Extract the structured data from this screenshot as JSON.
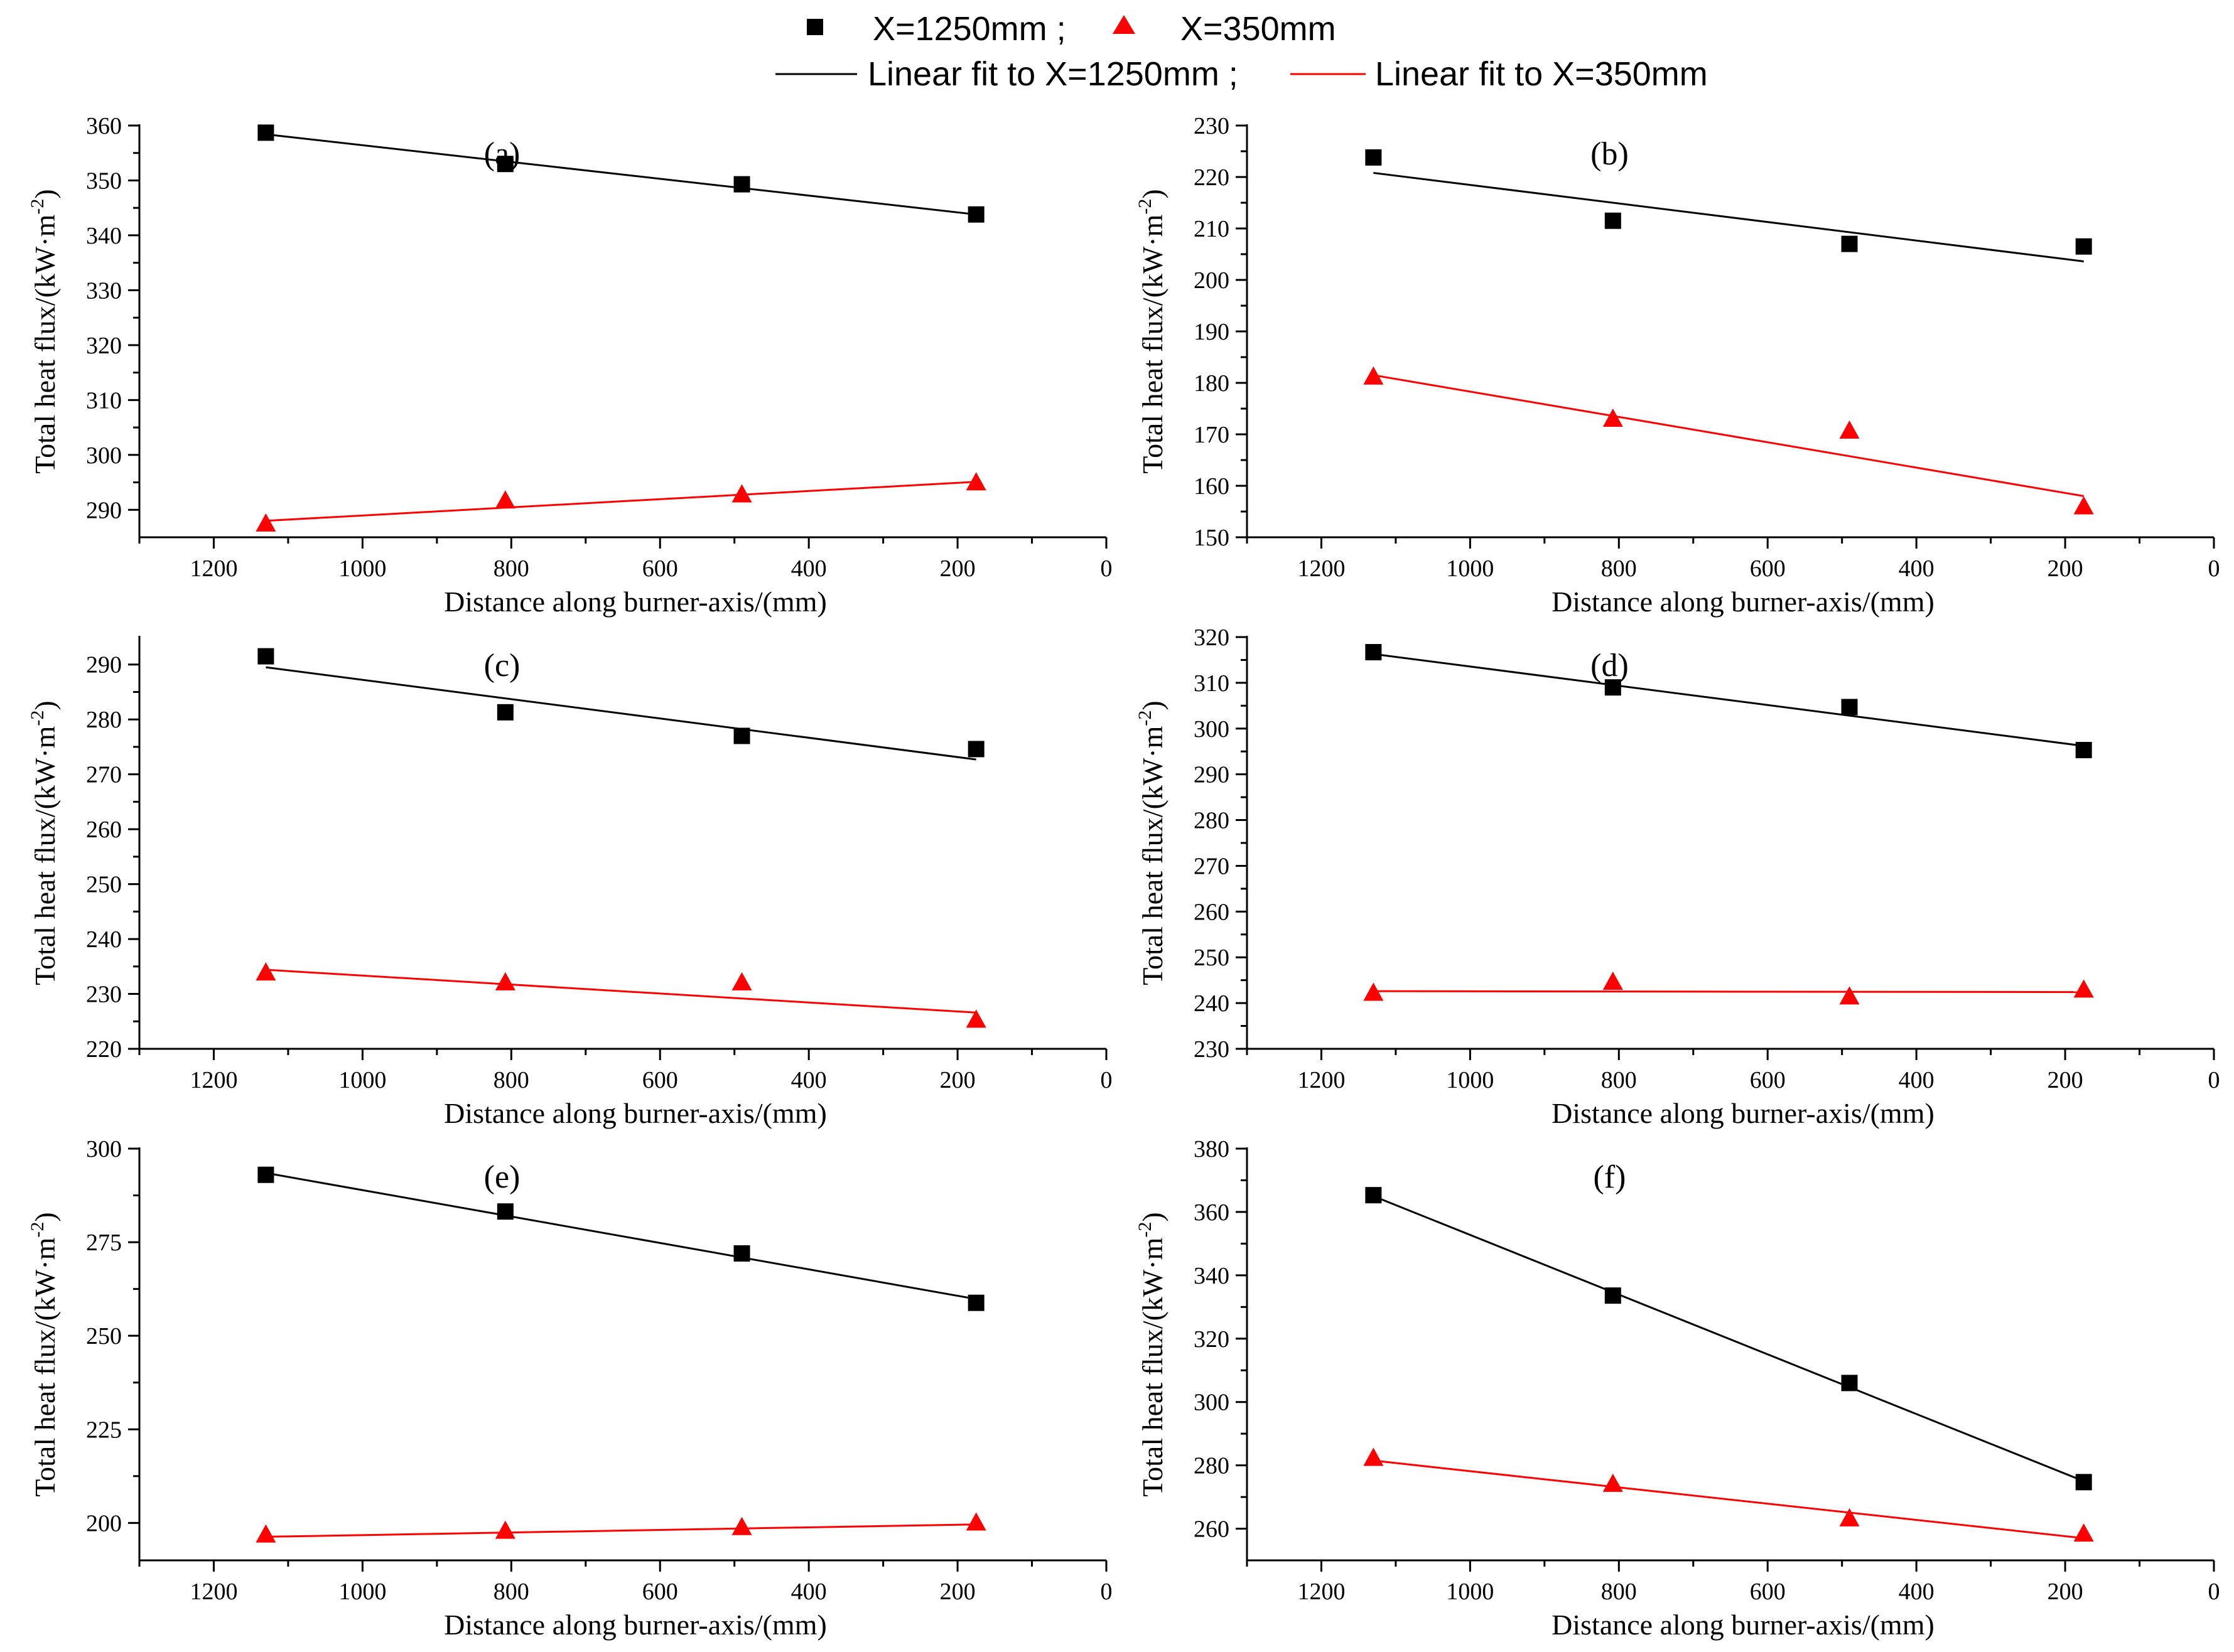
{
  "legend": {
    "series1_label": "X=1250mm ;",
    "series2_label": "X=350mm",
    "fit1_label": "Linear fit to X=1250mm ;",
    "fit2_label": "Linear fit to X=350mm"
  },
  "colors": {
    "series1": "#000000",
    "series2": "#ff0000"
  },
  "chart_data": [
    {
      "type": "scatter",
      "panel_label": "(a)",
      "xlabel": "Distance along burner-axis/(mm)",
      "ylabel": "Total heat flux/(kW·m",
      "ylabel_sup": "-2",
      "ylabel_close": ")",
      "xlim": [
        1300,
        0
      ],
      "xticks": [
        1200,
        1000,
        800,
        600,
        400,
        200,
        0
      ],
      "ylim": [
        285,
        360
      ],
      "yticks": [
        290,
        300,
        310,
        320,
        330,
        340,
        350,
        360
      ],
      "x": [
        1130,
        808,
        490,
        175
      ],
      "series": [
        {
          "name": "X=1250mm",
          "values": [
            358.7,
            353.0,
            349.3,
            343.8
          ],
          "fit": [
            358.4,
            343.8
          ]
        },
        {
          "name": "X=350mm",
          "values": [
            287.3,
            291.5,
            292.6,
            294.8
          ],
          "fit": [
            288.0,
            295.1
          ]
        }
      ]
    },
    {
      "type": "scatter",
      "panel_label": "(b)",
      "xlabel": "Distance along burner-axis/(mm)",
      "ylabel": "Total heat flux/(kW·m",
      "ylabel_sup": "-2",
      "ylabel_close": ")",
      "xlim": [
        1300,
        0
      ],
      "xticks": [
        1200,
        1000,
        800,
        600,
        400,
        200,
        0
      ],
      "ylim": [
        150,
        230
      ],
      "yticks": [
        150,
        160,
        170,
        180,
        190,
        200,
        210,
        220,
        230
      ],
      "x": [
        1130,
        808,
        490,
        175
      ],
      "series": [
        {
          "name": "X=1250mm",
          "values": [
            223.8,
            211.5,
            207.0,
            206.5
          ],
          "fit": [
            220.8,
            203.6
          ]
        },
        {
          "name": "X=350mm",
          "values": [
            181.0,
            172.8,
            170.5,
            155.8
          ],
          "fit": [
            181.5,
            158.0
          ]
        }
      ]
    },
    {
      "type": "scatter",
      "panel_label": "(c)",
      "xlabel": "Distance along burner-axis/(mm)",
      "ylabel": "Total heat flux/(kW·m",
      "ylabel_sup": "-2",
      "ylabel_close": ")",
      "xlim": [
        1300,
        0
      ],
      "xticks": [
        1200,
        1000,
        800,
        600,
        400,
        200,
        0
      ],
      "ylim": [
        220,
        295
      ],
      "yticks": [
        220,
        230,
        240,
        250,
        260,
        270,
        280,
        290
      ],
      "x": [
        1130,
        808,
        490,
        175
      ],
      "series": [
        {
          "name": "X=1250mm",
          "values": [
            291.5,
            281.3,
            277.0,
            274.6
          ],
          "fit": [
            289.5,
            272.7
          ]
        },
        {
          "name": "X=350mm",
          "values": [
            233.7,
            231.9,
            231.9,
            225.1
          ],
          "fit": [
            234.4,
            226.6
          ]
        }
      ]
    },
    {
      "type": "scatter",
      "panel_label": "(d)",
      "xlabel": "Distance along burner-axis/(mm)",
      "ylabel": "Total heat flux/(kW·m",
      "ylabel_sup": "-2",
      "ylabel_close": ")",
      "xlim": [
        1300,
        0
      ],
      "xticks": [
        1200,
        1000,
        800,
        600,
        400,
        200,
        0
      ],
      "ylim": [
        230,
        320
      ],
      "yticks": [
        230,
        240,
        250,
        260,
        270,
        280,
        290,
        300,
        310,
        320
      ],
      "x": [
        1130,
        808,
        490,
        175
      ],
      "series": [
        {
          "name": "X=1250mm",
          "values": [
            316.7,
            309.0,
            304.7,
            295.3
          ],
          "fit": [
            316.3,
            296.2
          ]
        },
        {
          "name": "X=350mm",
          "values": [
            242.0,
            244.4,
            241.2,
            242.7
          ],
          "fit": [
            242.6,
            242.4
          ]
        }
      ]
    },
    {
      "type": "scatter",
      "panel_label": "(e)",
      "xlabel": "Distance along burner-axis/(mm)",
      "ylabel": "Total heat flux/(kW·m",
      "ylabel_sup": "-2",
      "ylabel_close": ")",
      "xlim": [
        1300,
        0
      ],
      "xticks": [
        1200,
        1000,
        800,
        600,
        400,
        200,
        0
      ],
      "ylim": [
        190,
        300
      ],
      "yticks": [
        200,
        225,
        250,
        275,
        300
      ],
      "x": [
        1130,
        808,
        490,
        175
      ],
      "series": [
        {
          "name": "X=1250mm",
          "values": [
            293.0,
            283.2,
            272.0,
            258.8
          ],
          "fit": [
            293.5,
            259.8
          ]
        },
        {
          "name": "X=350mm",
          "values": [
            196.6,
            197.6,
            198.6,
            199.8
          ],
          "fit": [
            196.3,
            199.6
          ]
        }
      ]
    },
    {
      "type": "scatter",
      "panel_label": "(f)",
      "xlabel": "Distance along burner-axis/(mm)",
      "ylabel": "Total heat flux/(kW·m",
      "ylabel_sup": "-2",
      "ylabel_close": ")",
      "xlim": [
        1300,
        0
      ],
      "xticks": [
        1200,
        1000,
        800,
        600,
        400,
        200,
        0
      ],
      "ylim": [
        250,
        380
      ],
      "yticks": [
        260,
        280,
        300,
        320,
        340,
        360,
        380
      ],
      "x": [
        1130,
        808,
        490,
        175
      ],
      "series": [
        {
          "name": "X=1250mm",
          "values": [
            365.3,
            333.6,
            306.0,
            274.7
          ],
          "fit": [
            365.0,
            275.0
          ]
        },
        {
          "name": "X=350mm",
          "values": [
            282.0,
            273.8,
            262.9,
            258.1
          ],
          "fit": [
            281.5,
            257.0
          ]
        }
      ]
    }
  ]
}
